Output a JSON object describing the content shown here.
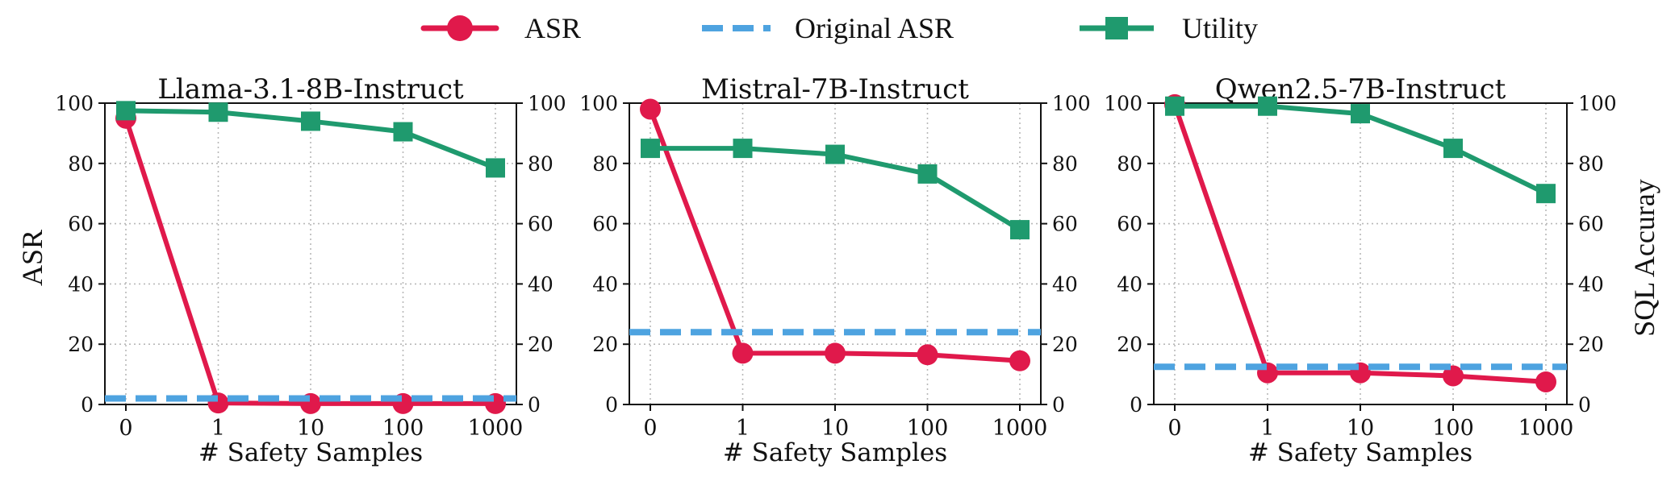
{
  "legend": {
    "items": [
      {
        "label": "ASR",
        "style": "line-circle",
        "color": "#e0194b"
      },
      {
        "label": "Original ASR",
        "style": "dashed",
        "color": "#4ea3e0"
      },
      {
        "label": "Utility",
        "style": "line-square",
        "color": "#1f9a6e"
      }
    ]
  },
  "axes_text": {
    "left_ylabel": "ASR",
    "right_ylabel": "SQL Accuray",
    "xlabel": "# Safety Samples"
  },
  "chart_data": [
    {
      "type": "line",
      "title": "Llama-3.1-8B-Instruct",
      "x": [
        "0",
        "1",
        "10",
        "100",
        "1000"
      ],
      "xlabel": "# Safety Samples",
      "ylabel": "ASR",
      "ylim": [
        0,
        100
      ],
      "y2lim": [
        0,
        100
      ],
      "yticks": [
        0,
        20,
        40,
        60,
        80,
        100
      ],
      "grid": true,
      "series": [
        {
          "name": "ASR",
          "axis": "left",
          "color": "#e0194b",
          "marker": "circle",
          "values": [
            95,
            0.5,
            0.3,
            0.3,
            0.3
          ]
        },
        {
          "name": "Original ASR",
          "axis": "left",
          "color": "#4ea3e0",
          "style": "dashed",
          "constant": 2
        },
        {
          "name": "Utility",
          "axis": "right",
          "color": "#1f9a6e",
          "marker": "square",
          "values": [
            97.5,
            97,
            94,
            90.5,
            78.5
          ]
        }
      ]
    },
    {
      "type": "line",
      "title": "Mistral-7B-Instruct",
      "x": [
        "0",
        "1",
        "10",
        "100",
        "1000"
      ],
      "xlabel": "# Safety Samples",
      "ylabel": "ASR",
      "ylim": [
        0,
        100
      ],
      "y2lim": [
        0,
        100
      ],
      "yticks": [
        0,
        20,
        40,
        60,
        80,
        100
      ],
      "grid": true,
      "series": [
        {
          "name": "ASR",
          "axis": "left",
          "color": "#e0194b",
          "marker": "circle",
          "values": [
            98,
            17,
            17,
            16.5,
            14.5
          ]
        },
        {
          "name": "Original ASR",
          "axis": "left",
          "color": "#4ea3e0",
          "style": "dashed",
          "constant": 24
        },
        {
          "name": "Utility",
          "axis": "right",
          "color": "#1f9a6e",
          "marker": "square",
          "values": [
            85,
            85,
            83,
            76.5,
            58
          ]
        }
      ]
    },
    {
      "type": "line",
      "title": "Qwen2.5-7B-Instruct",
      "x": [
        "0",
        "1",
        "10",
        "100",
        "1000"
      ],
      "xlabel": "# Safety Samples",
      "ylabel": "ASR",
      "y2label": "SQL Accuray",
      "ylim": [
        0,
        100
      ],
      "y2lim": [
        0,
        100
      ],
      "yticks": [
        0,
        20,
        40,
        60,
        80,
        100
      ],
      "grid": true,
      "series": [
        {
          "name": "ASR",
          "axis": "left",
          "color": "#e0194b",
          "marker": "circle",
          "values": [
            99.5,
            10.5,
            10.5,
            9.5,
            7.5
          ]
        },
        {
          "name": "Original ASR",
          "axis": "left",
          "color": "#4ea3e0",
          "style": "dashed",
          "constant": 12.5
        },
        {
          "name": "Utility",
          "axis": "right",
          "color": "#1f9a6e",
          "marker": "square",
          "values": [
            99,
            99,
            96.5,
            85,
            70
          ]
        }
      ]
    }
  ]
}
